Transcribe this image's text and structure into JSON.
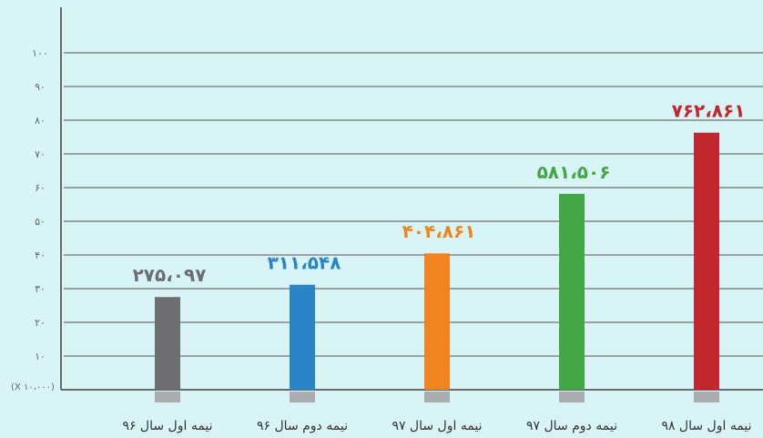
{
  "chart_data": {
    "type": "bar",
    "categories": [
      "نیمه اول سال ۹۶",
      "نیمه دوم سال ۹۶",
      "نیمه اول سال ۹۷",
      "نیمه دوم سال ۹۷",
      "نیمه اول سال ۹۸"
    ],
    "values": [
      27.5097,
      31.1548,
      40.4861,
      58.1506,
      76.2861
    ],
    "value_labels": [
      "۲۷۵،۰۹۷",
      "۳۱۱،۵۴۸",
      "۴۰۴،۸۶۱",
      "۵۸۱،۵۰۶",
      "۷۶۲،۸۶۱"
    ],
    "colors": [
      "#6d6e71",
      "#2b84c6",
      "#f2841f",
      "#44a747",
      "#c1272d"
    ],
    "ylim": [
      0,
      100
    ],
    "yticks": [
      10,
      20,
      30,
      40,
      50,
      60,
      70,
      80,
      90,
      100
    ],
    "ytick_labels": [
      "۱۰",
      "۲۰",
      "۳۰",
      "۴۰",
      "۵۰",
      "۶۰",
      "۷۰",
      "۸۰",
      "۹۰",
      "۱۰۰"
    ],
    "unit_label": "(X ۱۰،۰۰۰)",
    "grid": true
  }
}
